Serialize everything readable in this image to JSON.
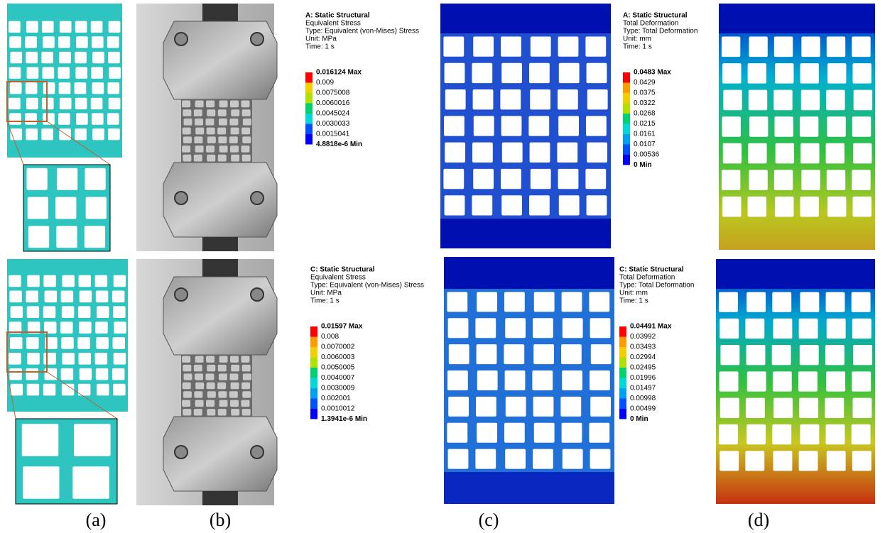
{
  "panel_labels": [
    "(a)",
    "(b)",
    "(c)",
    "(d)"
  ],
  "legends": [
    {
      "title": "A: Static Structural",
      "lines": [
        "Equivalent Stress",
        "Type: Equivalent (von-Mises) Stress",
        "Unit: MPa",
        "Time: 1 s"
      ],
      "scale": [
        "0.016124 Max",
        "0.009",
        "0.0075008",
        "0.0060016",
        "0.0045024",
        "0.0030033",
        "0.0015041",
        "4.8818e-6 Min"
      ]
    },
    {
      "title": "A: Static Structural",
      "lines": [
        "Total Deformation",
        "Type: Total Deformation",
        "Unit: mm",
        "Time: 1 s"
      ],
      "scale": [
        "0.0483 Max",
        "0.0429",
        "0.0375",
        "0.0322",
        "0.0268",
        "0.0215",
        "0.0161",
        "0.0107",
        "0.00536",
        "0 Min"
      ]
    },
    {
      "title": "C: Static Structural",
      "lines": [
        "Equivalent Stress",
        "Type: Equivalent (von-Mises) Stress",
        "Unit: MPa",
        "Time: 1 s"
      ],
      "scale": [
        "0.01597 Max",
        "0.008",
        "0.0070002",
        "0.0060003",
        "0.0050005",
        "0.0040007",
        "0.0030009",
        "0.002001",
        "0.0010012",
        "1.3941e-6 Min"
      ]
    },
    {
      "title": "C: Static Structural",
      "lines": [
        "Total Deformation",
        "Type: Total Deformation",
        "Unit: mm",
        "Time: 1 s"
      ],
      "scale": [
        "0.04491 Max",
        "0.03992",
        "0.03493",
        "0.02994",
        "0.02495",
        "0.01996",
        "0.01497",
        "0.00998",
        "0.00499",
        "0 Min"
      ]
    }
  ]
}
